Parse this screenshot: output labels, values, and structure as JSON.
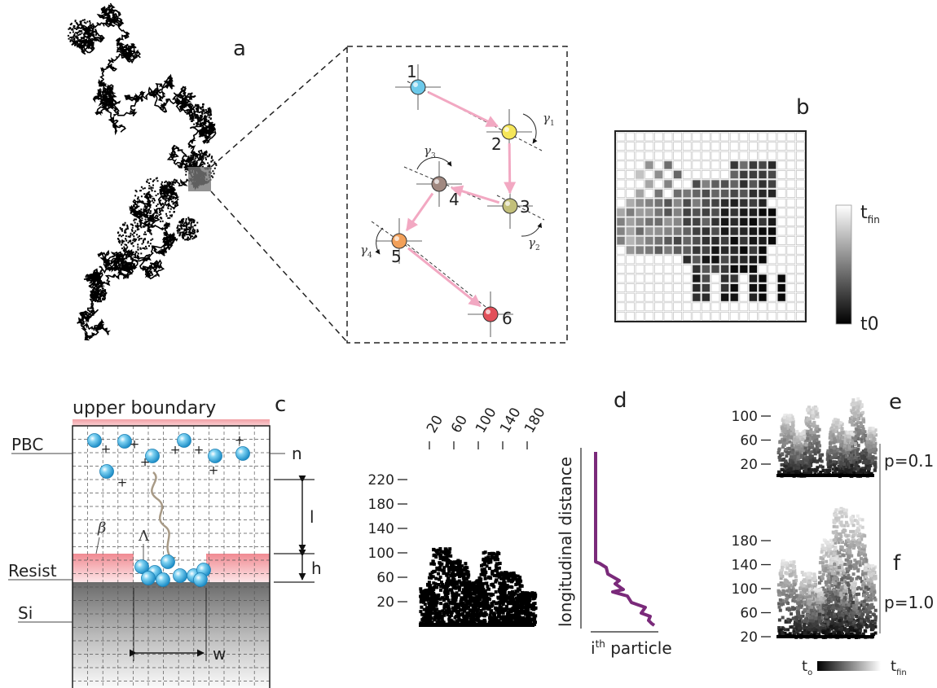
{
  "panels": {
    "a": {
      "letter": "a",
      "node_labels": [
        "1",
        "2",
        "3",
        "4",
        "5",
        "6"
      ],
      "node_colors": [
        "#6cc9ea",
        "#f5e65a",
        "#c2bf7a",
        "#a08880",
        "#f2a05a",
        "#e2505a"
      ],
      "angle_labels": [
        {
          "greek": "γ",
          "sub": "1"
        },
        {
          "greek": "γ",
          "sub": "2"
        },
        {
          "greek": "γ",
          "sub": "3"
        },
        {
          "greek": "γ",
          "sub": "4"
        }
      ],
      "arrow_color": "#f2a8c2"
    },
    "b": {
      "letter": "b",
      "colorbar_top": "t",
      "colorbar_top_sub": "fin",
      "colorbar_bottom": "t0"
    },
    "c": {
      "letter": "c",
      "upper_boundary": "upper boundary",
      "pbc": "PBC",
      "resist": "Resist",
      "si": "Si",
      "n": "n",
      "l": "l",
      "h": "h",
      "w": "w",
      "beta": "β",
      "lambda": "Λ",
      "particle_color": "#3fb6e8",
      "resist_color": "#f4a3a8"
    },
    "d": {
      "letter": "d",
      "top_ticks": [
        "20",
        "60",
        "100",
        "140",
        "180"
      ],
      "left_ticks": [
        "220",
        "180",
        "140",
        "100",
        "60",
        "20"
      ],
      "ylabel": "longitudinal distance",
      "xlabel_i": "i",
      "xlabel_sup": "th",
      "xlabel_rest": " particle",
      "line_color": "#7a2a7a"
    },
    "e": {
      "letter": "e",
      "ticks": [
        "100",
        "60",
        "20"
      ],
      "p_label": "p=0.1"
    },
    "f": {
      "letter": "f",
      "ticks": [
        "180",
        "140",
        "100",
        "60",
        "20"
      ],
      "p_label": "p=1.0",
      "bar_left": "t",
      "bar_left_sub": "o",
      "bar_right": "t",
      "bar_right_sub": "fin"
    }
  }
}
